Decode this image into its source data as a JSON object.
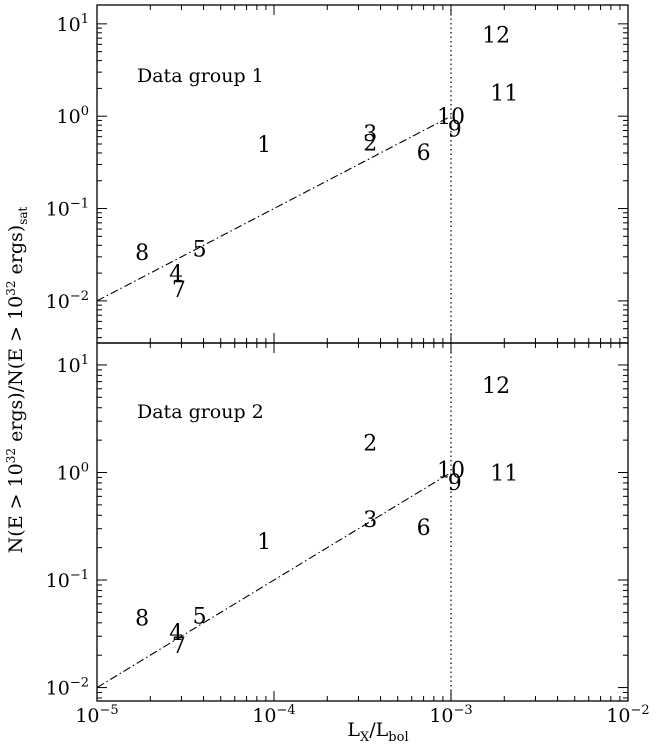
{
  "chart_data": [
    {
      "type": "scatter",
      "annotation": "Data group 1",
      "xlabel": {
        "main": "L",
        "sub1": "X",
        "mid": "/L",
        "sub2": "bol"
      },
      "ylabel": {
        "pre": "N(E > 10",
        "sup1": "32",
        "mid": " ergs)/N(E > 10",
        "sup2": "32",
        "post": " ergs)",
        "sub": "sat"
      },
      "xscale": "log",
      "yscale": "log",
      "xlim": [
        1e-05,
        0.01
      ],
      "ylim": [
        0.0035,
        16
      ],
      "x_ticks": [
        {
          "value": 1e-05,
          "base": "10",
          "exp": "−5"
        },
        {
          "value": 0.0001,
          "base": "10",
          "exp": "−4"
        },
        {
          "value": 0.001,
          "base": "10",
          "exp": "−3"
        },
        {
          "value": 0.01,
          "base": "10",
          "exp": "−2"
        }
      ],
      "y_ticks": [
        {
          "value": 0.01,
          "base": "10",
          "exp": "−2"
        },
        {
          "value": 0.1,
          "base": "10",
          "exp": "−1"
        },
        {
          "value": 1,
          "base": "10",
          "exp": "0"
        },
        {
          "value": 10,
          "base": "10",
          "exp": "1"
        }
      ],
      "points": [
        {
          "label": "1",
          "x": 8.8e-05,
          "y": 0.5
        },
        {
          "label": "2",
          "x": 0.00035,
          "y": 0.52
        },
        {
          "label": "3",
          "x": 0.00035,
          "y": 0.66
        },
        {
          "label": "4",
          "x": 2.8e-05,
          "y": 0.02
        },
        {
          "label": "5",
          "x": 3.8e-05,
          "y": 0.037
        },
        {
          "label": "6",
          "x": 0.0007,
          "y": 0.41
        },
        {
          "label": "7",
          "x": 2.9e-05,
          "y": 0.0135
        },
        {
          "label": "8",
          "x": 1.8e-05,
          "y": 0.034
        },
        {
          "label": "9",
          "x": 0.00105,
          "y": 0.74
        },
        {
          "label": "10",
          "x": 0.001,
          "y": 1.0
        },
        {
          "label": "11",
          "x": 0.002,
          "y": 1.8
        },
        {
          "label": "12",
          "x": 0.0018,
          "y": 7.7
        }
      ],
      "fit_line": {
        "x": [
          1e-05,
          0.001
        ],
        "y": [
          0.01,
          1.0
        ],
        "style": "dash-dot"
      },
      "reference_line": {
        "x": 0.001,
        "style": "dotted"
      }
    },
    {
      "type": "scatter",
      "annotation": "Data group 2",
      "xscale": "log",
      "yscale": "log",
      "xlim": [
        1e-05,
        0.01
      ],
      "ylim": [
        0.0075,
        16
      ],
      "y_ticks": [
        {
          "value": 0.01,
          "base": "10",
          "exp": "−2"
        },
        {
          "value": 0.1,
          "base": "10",
          "exp": "−1"
        },
        {
          "value": 1,
          "base": "10",
          "exp": "0"
        },
        {
          "value": 10,
          "base": "10",
          "exp": "1"
        }
      ],
      "points": [
        {
          "label": "1",
          "x": 8.8e-05,
          "y": 0.23
        },
        {
          "label": "2",
          "x": 0.00035,
          "y": 1.9
        },
        {
          "label": "3",
          "x": 0.00035,
          "y": 0.37
        },
        {
          "label": "4",
          "x": 2.8e-05,
          "y": 0.033
        },
        {
          "label": "5",
          "x": 3.8e-05,
          "y": 0.047
        },
        {
          "label": "6",
          "x": 0.0007,
          "y": 0.31
        },
        {
          "label": "7",
          "x": 2.9e-05,
          "y": 0.025
        },
        {
          "label": "8",
          "x": 1.8e-05,
          "y": 0.045
        },
        {
          "label": "9",
          "x": 0.00105,
          "y": 0.82
        },
        {
          "label": "10",
          "x": 0.001,
          "y": 1.07
        },
        {
          "label": "11",
          "x": 0.002,
          "y": 1.0
        },
        {
          "label": "12",
          "x": 0.0018,
          "y": 6.5
        }
      ],
      "fit_line": {
        "x": [
          1e-05,
          0.001
        ],
        "y": [
          0.01,
          1.0
        ],
        "style": "dash-dot"
      },
      "reference_line": {
        "x": 0.001,
        "style": "dotted"
      }
    }
  ]
}
